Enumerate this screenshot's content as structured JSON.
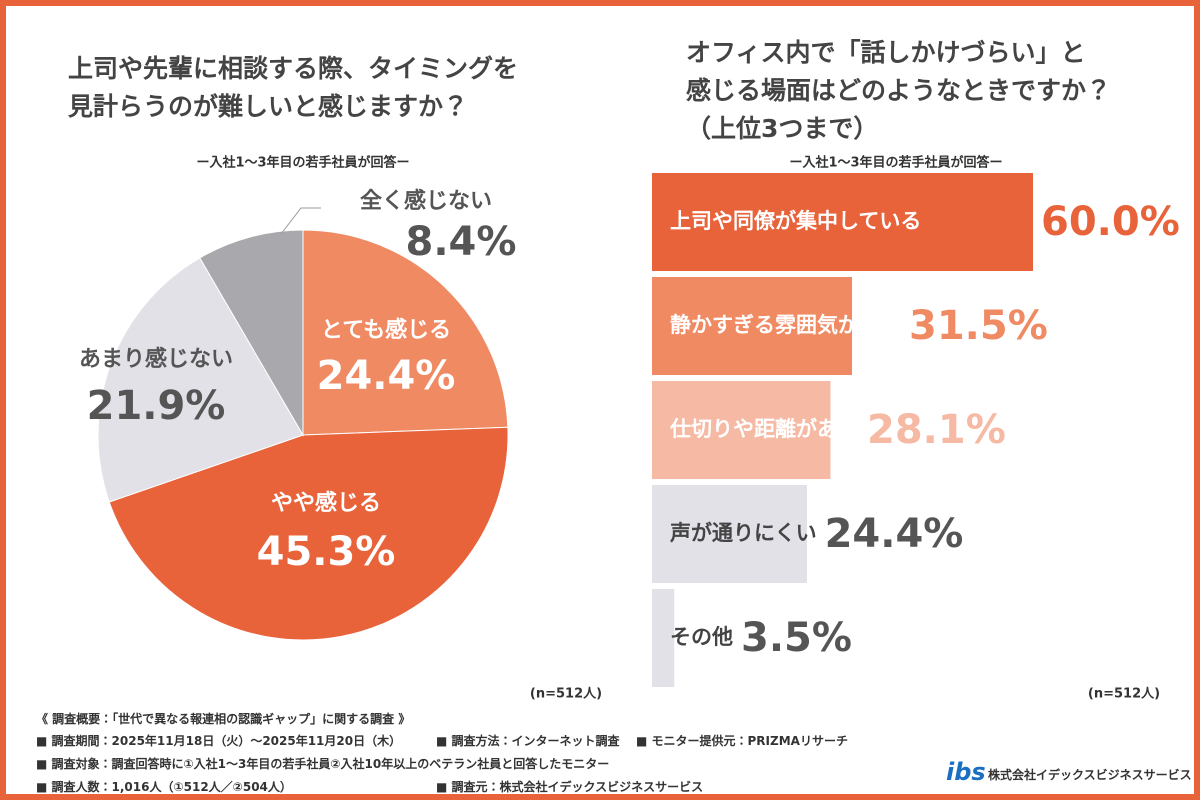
{
  "chart_data": [
    {
      "type": "pie",
      "title": "上司や先輩に相談する際、タイミングを\n見計らうのが難しいと感じますか？",
      "subtitle": "ー入社1〜3年目の若手社員が回答ー",
      "note": "(n=512人)",
      "categories": [
        "とても感じる",
        "やや感じる",
        "あまり感じない",
        "全く感じない"
      ],
      "values": [
        24.4,
        45.3,
        21.9,
        8.4
      ],
      "value_labels": [
        "24.4%",
        "45.3%",
        "21.9%",
        "8.4%"
      ],
      "colors": [
        "#f08a63",
        "#e8623a",
        "#e3e1e8",
        "#a9a8ad"
      ]
    },
    {
      "type": "bar",
      "title": "オフィス内で「話しかけづらい」と\n感じる場面はどのようなときですか？\n（上位3つまで）",
      "subtitle": "ー入社1〜3年目の若手社員が回答ー",
      "note": "(n=512人)",
      "categories": [
        "上司や同僚が集中している",
        "静かすぎる雰囲気がある",
        "仕切りや距離がある",
        "声が通りにくい",
        "その他"
      ],
      "values": [
        60.0,
        31.5,
        28.1,
        24.4,
        3.5
      ],
      "value_labels": [
        "60.0%",
        "31.5%",
        "28.1%",
        "24.4%",
        "3.5%"
      ],
      "colors": [
        "#e8623a",
        "#f08a63",
        "#f6b9a3",
        "#e3e1e8",
        "#e3e1e8"
      ]
    }
  ],
  "footer": {
    "heading": "《 調査概要：「世代で異なる報連相の認識ギャップ」に関する調査 》",
    "items": [
      [
        "■ 調査期間：2025年11月18日（火）〜2025年11月20日（木）",
        "■ 調査方法：インターネット調査",
        "■ モニター提供元：PRIZMAリサーチ"
      ],
      [
        "■ 調査対象：調査回答時に①入社1〜3年目の若手社員②入社10年以上のベテラン社員と回答したモニター"
      ],
      [
        "■ 調査人数：1,016人（①512人／②504人）",
        "■ 調査元：株式会社イデックスビジネスサービス"
      ]
    ],
    "logo_mark": "ibs",
    "company": "株式会社イデックスビジネスサービス"
  }
}
